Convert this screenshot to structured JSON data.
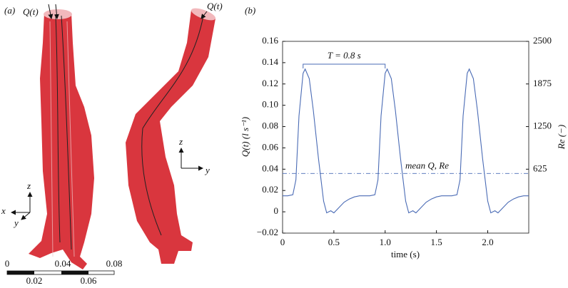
{
  "panel_a": {
    "label": "(a)",
    "flow_label_left": "Q(t)",
    "flow_label_right": "Q(t)",
    "axes_left": {
      "z": "z",
      "x": "x",
      "y": "y"
    },
    "axes_right": {
      "z": "z",
      "y": "y"
    },
    "scale_top": [
      "0",
      "0.04",
      "0.08"
    ],
    "scale_bottom": [
      "0.02",
      "0.06"
    ]
  },
  "chart_data": {
    "type": "line",
    "panel_label": "(b)",
    "x_label": "time (s)",
    "y_label": "Q(t) (l s⁻¹)",
    "y2_label": "Re (−)",
    "x": [
      0,
      0.05,
      0.1,
      0.13,
      0.16,
      0.2,
      0.22,
      0.26,
      0.3,
      0.35,
      0.4,
      0.43,
      0.47,
      0.5,
      0.55,
      0.6,
      0.65,
      0.7,
      0.75,
      0.8,
      0.85,
      0.9,
      0.93,
      0.96,
      1.0,
      1.02,
      1.06,
      1.1,
      1.15,
      1.2,
      1.23,
      1.27,
      1.3,
      1.35,
      1.4,
      1.45,
      1.5,
      1.55,
      1.6,
      1.65,
      1.7,
      1.73,
      1.76,
      1.8,
      1.82,
      1.86,
      1.9,
      1.95,
      2.0,
      2.03,
      2.07,
      2.1,
      2.15,
      2.2,
      2.25,
      2.3,
      2.35,
      2.4
    ],
    "series": [
      {
        "name": "Q(t)",
        "color": "#4a6bb5",
        "values": [
          0.015,
          0.015,
          0.016,
          0.03,
          0.09,
          0.13,
          0.134,
          0.125,
          0.095,
          0.05,
          0.01,
          -0.001,
          0.001,
          -0.001,
          0.004,
          0.009,
          0.012,
          0.014,
          0.015,
          0.015,
          0.015,
          0.016,
          0.03,
          0.09,
          0.13,
          0.134,
          0.125,
          0.095,
          0.05,
          0.01,
          -0.001,
          0.001,
          -0.001,
          0.004,
          0.009,
          0.012,
          0.014,
          0.015,
          0.015,
          0.015,
          0.016,
          0.03,
          0.09,
          0.13,
          0.134,
          0.125,
          0.095,
          0.05,
          0.01,
          -0.001,
          0.001,
          -0.001,
          0.004,
          0.009,
          0.012,
          0.014,
          0.015,
          0.015
        ]
      }
    ],
    "mean": {
      "label": "mean Q, Re",
      "value": 0.036
    },
    "period": {
      "label": "T = 0.8 s",
      "start": 0.2,
      "end": 1.0
    },
    "xlim": [
      0,
      2.4
    ],
    "xticks": [
      0,
      0.5,
      {
        "value": 1,
        "label": "1.0"
      },
      1.5,
      {
        "value": 2,
        "label": "2.0"
      }
    ],
    "ylim": [
      -0.02,
      0.16
    ],
    "yticks": [
      {
        "value": -0.02,
        "label": "−0.02"
      },
      0,
      0.02,
      0.04,
      0.06,
      0.08,
      {
        "value": 0.1,
        "label": "0.10"
      },
      0.12,
      0.14,
      0.16
    ],
    "y2lim": [
      -312.5,
      2500
    ],
    "y2ticks": [
      625,
      1250,
      1875,
      2500
    ]
  }
}
